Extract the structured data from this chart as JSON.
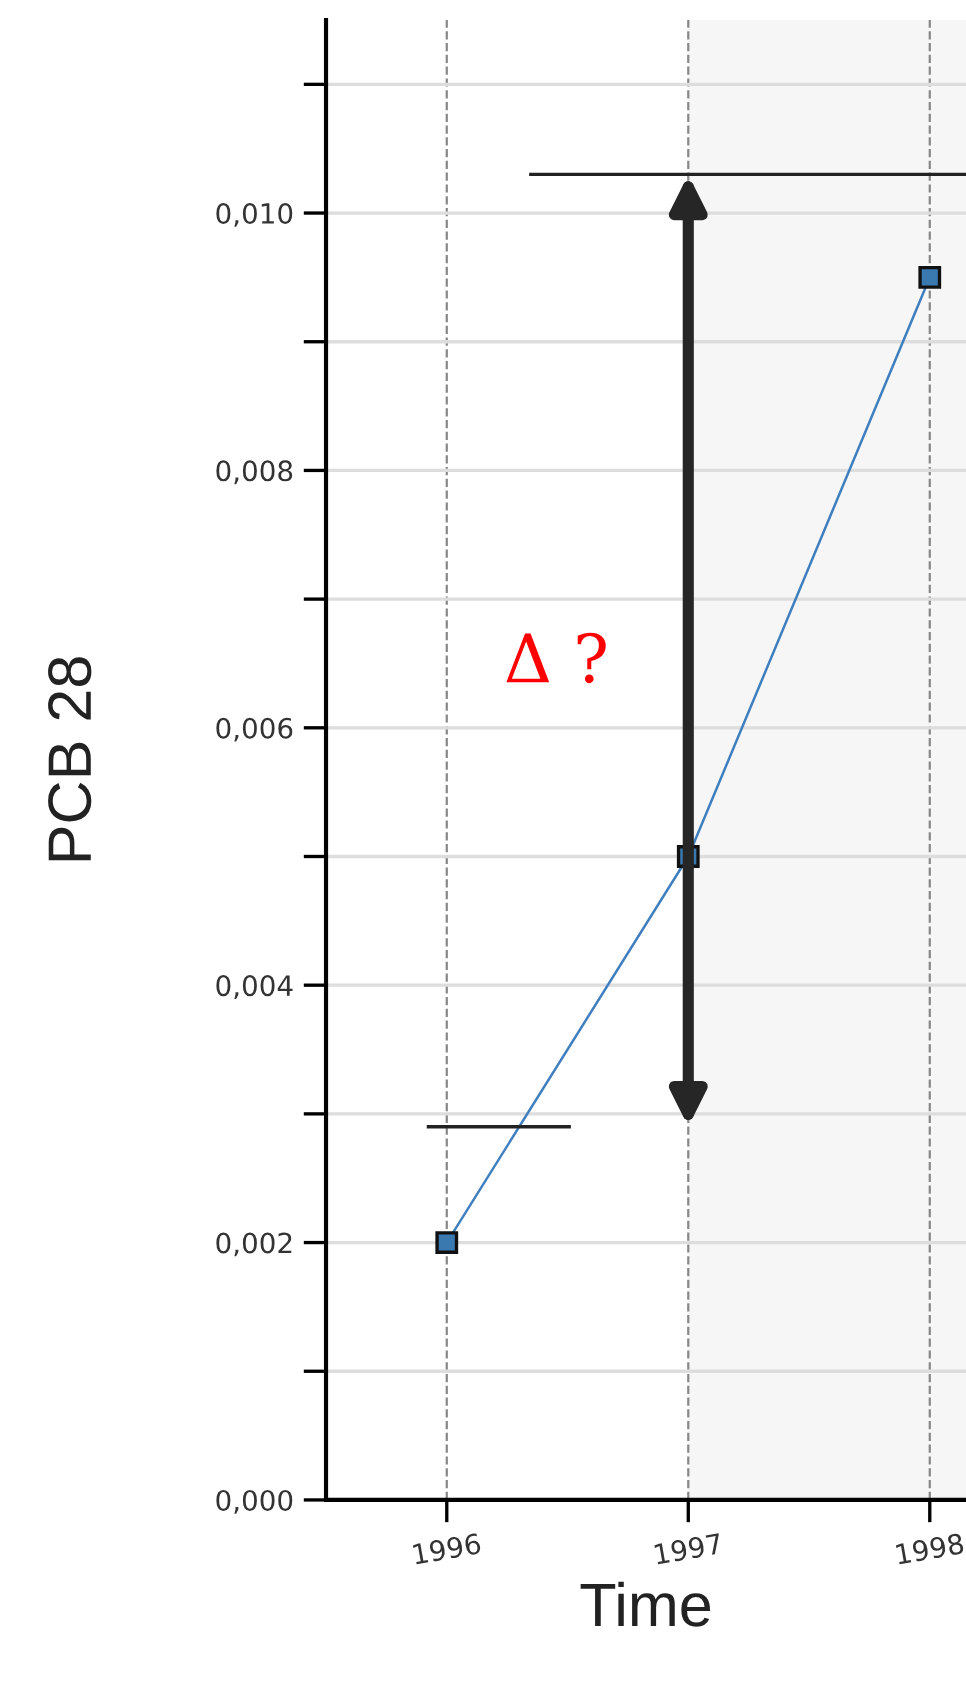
{
  "chart_data": {
    "type": "line",
    "xlabel": "Time",
    "ylabel": "PCB 28",
    "x": [
      1996,
      1997,
      1998
    ],
    "series": [
      {
        "color": "#3f7fbf",
        "values": [
          0.002,
          0.005,
          0.0095
        ]
      }
    ],
    "marker": "square",
    "line_style": "solid",
    "grid": true,
    "xlim": [
      1995.5,
      1998.15
    ],
    "ylim": [
      0,
      0.0115
    ],
    "xticks": [
      1996,
      1997,
      1998
    ],
    "yticks": [
      {
        "value": 0,
        "label": "0,000"
      },
      {
        "value": 0.001,
        "label": null
      },
      {
        "value": 0.002,
        "label": "0,002"
      },
      {
        "value": 0.003,
        "label": null
      },
      {
        "value": 0.004,
        "label": "0,004"
      },
      {
        "value": 0.005,
        "label": null
      },
      {
        "value": 0.006,
        "label": "0,006"
      },
      {
        "value": 0.007,
        "label": null
      },
      {
        "value": 0.008,
        "label": "0,008"
      },
      {
        "value": 0.009,
        "label": null
      },
      {
        "value": 0.01,
        "label": "0,010"
      },
      {
        "value": 0.011,
        "label": null
      }
    ],
    "bands": [
      {
        "axis": "x",
        "from": 1997,
        "to": 1998.15,
        "color": "#f6f6f6"
      }
    ],
    "ref_lines": [
      {
        "axis": "y",
        "value": 0.0103,
        "color": "#222222",
        "line_style": "solid"
      },
      {
        "axis": "y",
        "value": 0.0029,
        "color": "#222222",
        "line_style": "solid"
      }
    ],
    "annotations": [
      "Δ ?"
    ]
  }
}
